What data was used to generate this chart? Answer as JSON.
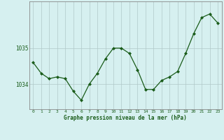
{
  "x": [
    0,
    1,
    2,
    3,
    4,
    5,
    6,
    7,
    8,
    9,
    10,
    11,
    12,
    13,
    14,
    15,
    16,
    17,
    18,
    19,
    20,
    21,
    22,
    23
  ],
  "y": [
    1034.6,
    1034.3,
    1034.15,
    1034.2,
    1034.15,
    1033.8,
    1033.55,
    1034.0,
    1034.3,
    1034.7,
    1035.0,
    1035.0,
    1034.85,
    1034.4,
    1033.85,
    1033.85,
    1034.1,
    1034.2,
    1034.35,
    1034.85,
    1035.4,
    1035.85,
    1035.95,
    1035.7
  ],
  "line_color": "#1a5c1a",
  "marker_color": "#1a5c1a",
  "bg_color": "#d6f0f0",
  "plot_bg_color": "#d6f0f0",
  "grid_color": "#b0c8c8",
  "xlabel": "Graphe pression niveau de la mer (hPa)",
  "xlabel_color": "#1a5c1a",
  "yticks": [
    1034,
    1035
  ],
  "ylim": [
    1033.3,
    1036.3
  ],
  "xlim": [
    -0.5,
    23.5
  ],
  "title": ""
}
